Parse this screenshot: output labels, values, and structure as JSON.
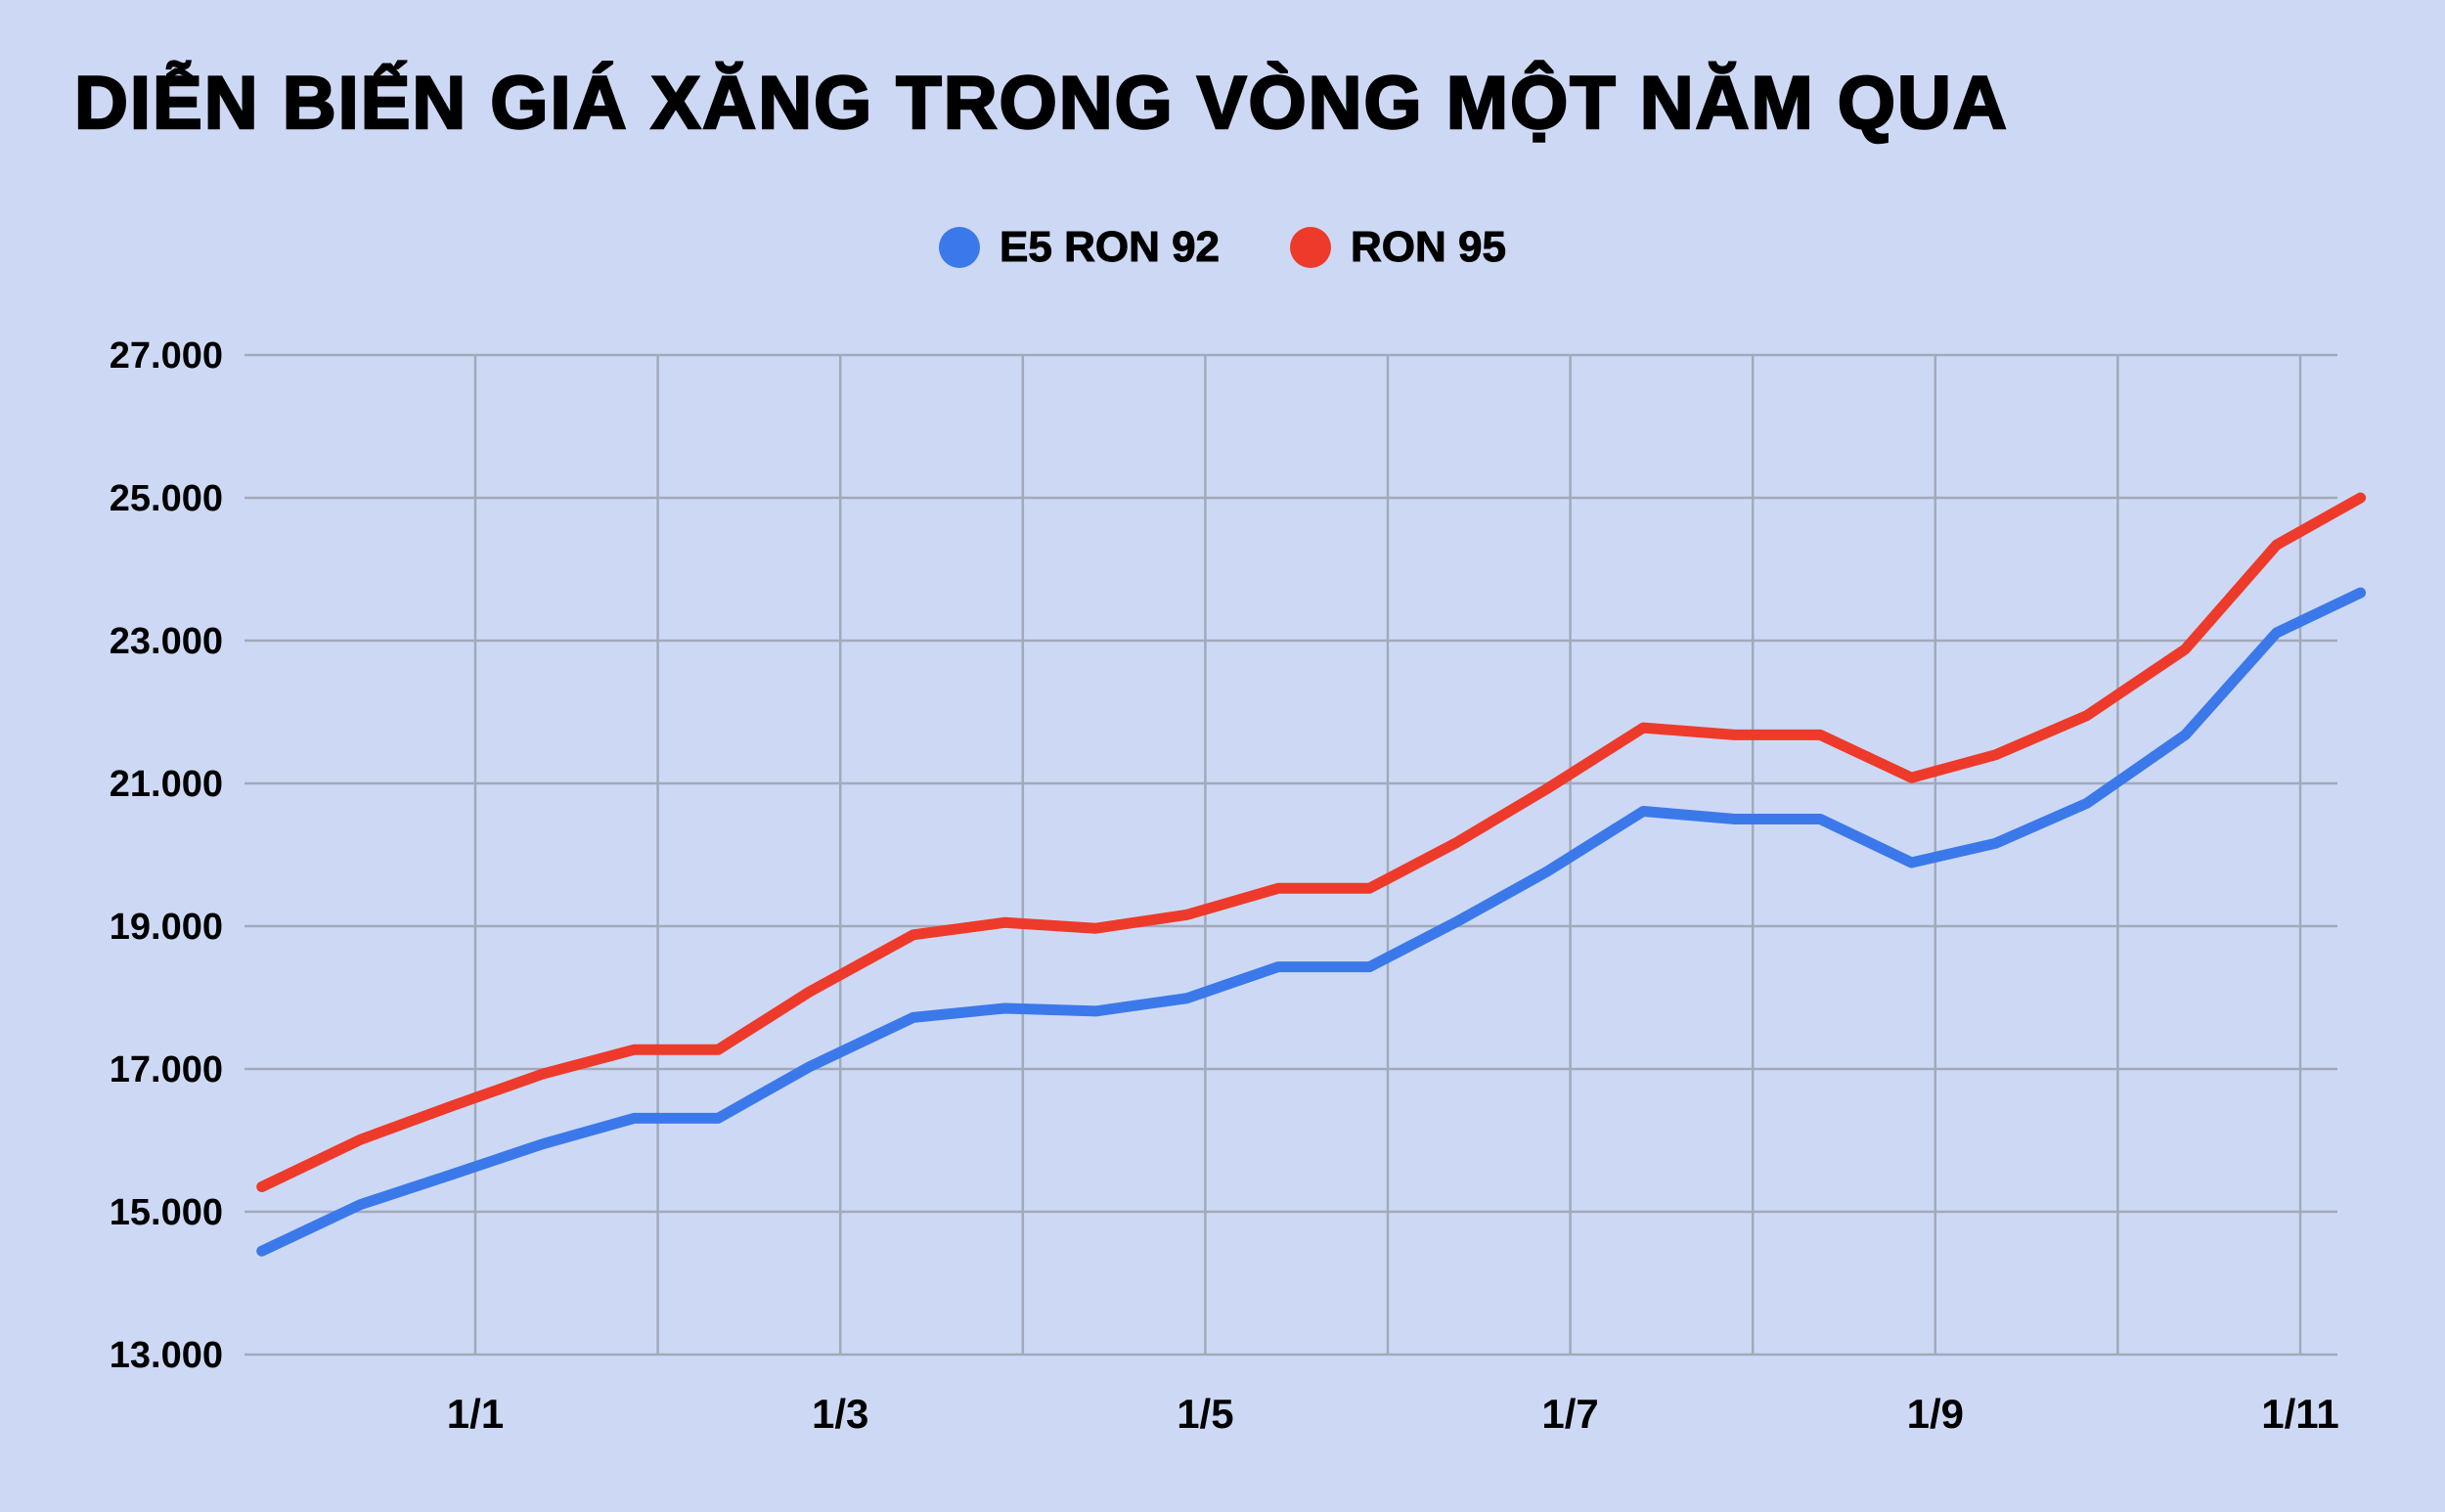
{
  "title": "DIỄN BIẾN GIÁ XĂNG TRONG VÒNG MỘT NĂM QUA",
  "legend": [
    {
      "label": "E5 RON 92",
      "color": "#3b79ea"
    },
    {
      "label": "RON 95",
      "color": "#ee3a2a"
    }
  ],
  "colors": {
    "background": "#cdd9f4",
    "grid": "#a2a9ba",
    "text": "#000000"
  },
  "chart_data": {
    "type": "line",
    "title": "DIỄN BIẾN GIÁ XĂNG TRONG VÒNG MỘT NĂM QUA",
    "grid": true,
    "legend_position": "top",
    "x_axis": {
      "tick_positions": [
        0,
        2,
        4,
        6,
        8,
        10
      ],
      "tick_labels": [
        "1/1",
        "1/3",
        "1/5",
        "1/7",
        "1/9",
        "1/11"
      ],
      "range": [
        -1.3,
        10.5
      ],
      "note": "x values are months relative to 1/1; vertical gridline each month"
    },
    "y_axis": {
      "ticks": [
        13000,
        15000,
        17000,
        19000,
        21000,
        23000,
        25000,
        27000
      ],
      "tick_labels": [
        "13.000",
        "15.000",
        "17.000",
        "19.000",
        "21.000",
        "23.000",
        "25.000",
        "27.000"
      ],
      "range": [
        13000,
        27000
      ]
    },
    "x": [
      -1.17,
      -0.63,
      -0.13,
      0.37,
      0.87,
      1.33,
      1.83,
      2.4,
      2.9,
      3.4,
      3.9,
      4.4,
      4.9,
      5.37,
      5.87,
      6.4,
      6.9,
      7.37,
      7.87,
      8.33,
      8.83,
      9.37,
      9.87,
      10.33
    ],
    "series": [
      {
        "name": "E5 RON 92",
        "color": "#3b79ea",
        "values": [
          14450,
          15100,
          15520,
          15950,
          16310,
          16310,
          17030,
          17720,
          17850,
          17810,
          17990,
          18430,
          18430,
          19050,
          19760,
          20610,
          20500,
          20500,
          19890,
          20160,
          20720,
          21680,
          23110,
          23670
        ]
      },
      {
        "name": "RON 95",
        "color": "#ee3a2a",
        "values": [
          15350,
          16010,
          16480,
          16930,
          17270,
          17270,
          18080,
          18880,
          19050,
          18970,
          19160,
          19530,
          19530,
          20160,
          20920,
          21780,
          21680,
          21680,
          21080,
          21400,
          21950,
          22880,
          24340,
          25000
        ]
      }
    ]
  }
}
